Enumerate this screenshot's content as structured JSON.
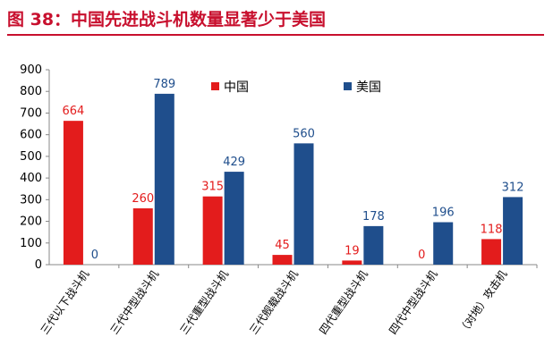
{
  "title": "图 38：中国先进战斗机数量显著少于美国",
  "chart_data": {
    "type": "bar",
    "categories": [
      "三代以下战斗机",
      "三代中型战斗机",
      "三代重型战斗机",
      "三代舰载战斗机",
      "四代重型战斗机",
      "四代中型战斗机",
      "（对地）攻击机"
    ],
    "series": [
      {
        "name": "中国",
        "values": [
          664,
          260,
          315,
          45,
          19,
          0,
          118
        ],
        "color": "#e31c1c"
      },
      {
        "name": "美国",
        "values": [
          0,
          789,
          429,
          560,
          178,
          196,
          312
        ],
        "color": "#1f4e8c"
      }
    ],
    "ylim": [
      0,
      900
    ],
    "yticks": [
      0,
      100,
      200,
      300,
      400,
      500,
      600,
      700,
      800,
      900
    ],
    "legend_position": "top",
    "grid": false
  }
}
